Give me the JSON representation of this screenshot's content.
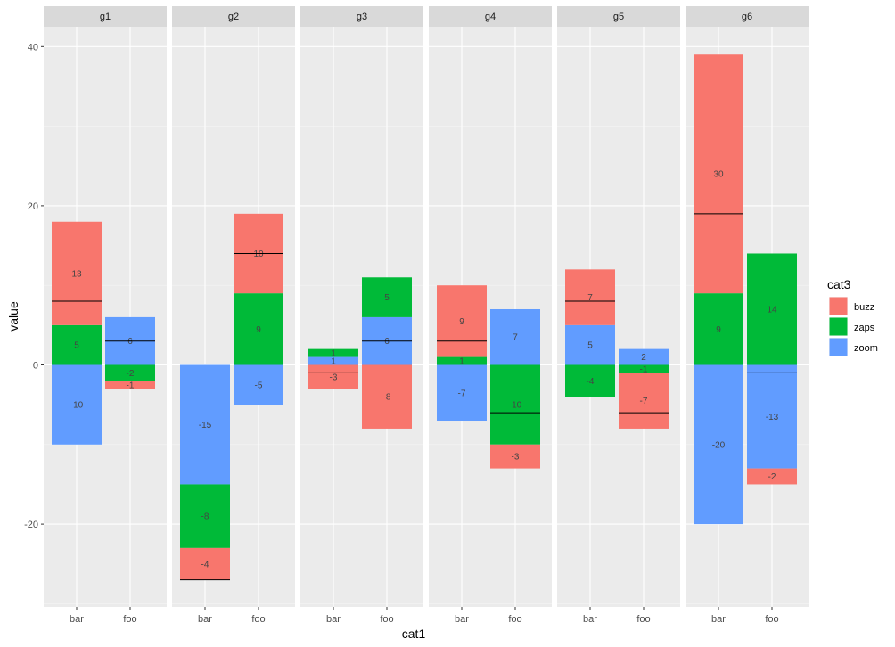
{
  "chart_data": {
    "type": "bar",
    "stacked": true,
    "facet_by": "facet",
    "facets": [
      "g1",
      "g2",
      "g3",
      "g4",
      "g5",
      "g6"
    ],
    "categories": [
      "bar",
      "foo"
    ],
    "xlabel": "cat1",
    "ylabel": "value",
    "ylim": [
      -30,
      40
    ],
    "yticks": [
      -20,
      0,
      20,
      40
    ],
    "grid": true,
    "legend": {
      "title": "cat3",
      "position": "right",
      "entries": [
        "buzz",
        "zaps",
        "zoom"
      ]
    },
    "colors": {
      "buzz": "#F8766D",
      "zaps": "#00BA38",
      "zoom": "#619CFF"
    },
    "panels": [
      {
        "facet": "g1",
        "bars": [
          {
            "category": "bar",
            "total": 8,
            "segments": [
              {
                "series": "zoom",
                "value": -10
              },
              {
                "series": "zaps",
                "value": 5
              },
              {
                "series": "buzz",
                "value": 13
              }
            ]
          },
          {
            "category": "foo",
            "total": 3,
            "segments": [
              {
                "series": "zaps",
                "value": -2
              },
              {
                "series": "buzz",
                "value": -1
              },
              {
                "series": "zoom",
                "value": 6
              }
            ]
          }
        ]
      },
      {
        "facet": "g2",
        "bars": [
          {
            "category": "bar",
            "total": -27,
            "segments": [
              {
                "series": "zoom",
                "value": -15
              },
              {
                "series": "zaps",
                "value": -8
              },
              {
                "series": "buzz",
                "value": -4
              }
            ]
          },
          {
            "category": "foo",
            "total": 14,
            "segments": [
              {
                "series": "zoom",
                "value": -5
              },
              {
                "series": "zaps",
                "value": 9
              },
              {
                "series": "buzz",
                "value": 10
              }
            ]
          }
        ]
      },
      {
        "facet": "g3",
        "bars": [
          {
            "category": "bar",
            "total": -1,
            "segments": [
              {
                "series": "buzz",
                "value": -3
              },
              {
                "series": "zoom",
                "value": 1
              },
              {
                "series": "zaps",
                "value": 1
              }
            ]
          },
          {
            "category": "foo",
            "total": 3,
            "segments": [
              {
                "series": "buzz",
                "value": -8
              },
              {
                "series": "zoom",
                "value": 6
              },
              {
                "series": "zaps",
                "value": 5
              }
            ]
          }
        ]
      },
      {
        "facet": "g4",
        "bars": [
          {
            "category": "bar",
            "total": 3,
            "segments": [
              {
                "series": "zoom",
                "value": -7
              },
              {
                "series": "zaps",
                "value": 1
              },
              {
                "series": "buzz",
                "value": 9
              }
            ]
          },
          {
            "category": "foo",
            "total": -6,
            "segments": [
              {
                "series": "zaps",
                "value": -10
              },
              {
                "series": "buzz",
                "value": -3
              },
              {
                "series": "zoom",
                "value": 7
              }
            ]
          }
        ]
      },
      {
        "facet": "g5",
        "bars": [
          {
            "category": "bar",
            "total": 8,
            "segments": [
              {
                "series": "zaps",
                "value": -4
              },
              {
                "series": "zoom",
                "value": 5
              },
              {
                "series": "buzz",
                "value": 7
              }
            ]
          },
          {
            "category": "foo",
            "total": -6,
            "segments": [
              {
                "series": "zaps",
                "value": -1
              },
              {
                "series": "buzz",
                "value": -7
              },
              {
                "series": "zoom",
                "value": 2
              }
            ]
          }
        ]
      },
      {
        "facet": "g6",
        "bars": [
          {
            "category": "bar",
            "total": 19,
            "segments": [
              {
                "series": "zoom",
                "value": -20
              },
              {
                "series": "zaps",
                "value": 9
              },
              {
                "series": "buzz",
                "value": 30
              }
            ]
          },
          {
            "category": "foo",
            "total": -1,
            "segments": [
              {
                "series": "zoom",
                "value": -13
              },
              {
                "series": "buzz",
                "value": -2
              },
              {
                "series": "zaps",
                "value": 14
              }
            ]
          }
        ]
      }
    ]
  }
}
